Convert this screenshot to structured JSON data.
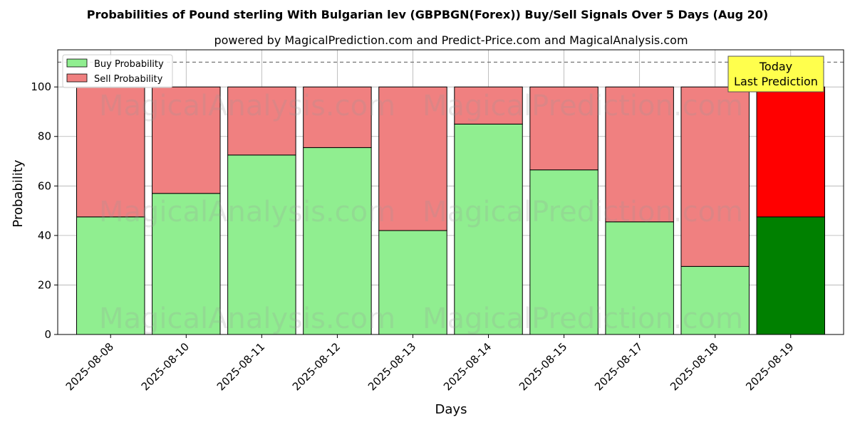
{
  "chart_data": {
    "type": "bar",
    "stacked": true,
    "title": "Probabilities of Pound sterling With Bulgarian lev (GBPBGN(Forex)) Buy/Sell Signals Over 5 Days (Aug 20)",
    "subtitle": "powered by MagicalPrediction.com and Predict-Price.com and MagicalAnalysis.com",
    "xlabel": "Days",
    "ylabel": "Probability",
    "ylim": [
      0,
      115
    ],
    "yticks": [
      0,
      20,
      40,
      60,
      80,
      100
    ],
    "grid": true,
    "legend_position": "top-left",
    "reference_line": 110,
    "categories": [
      "2025-08-08",
      "2025-08-10",
      "2025-08-11",
      "2025-08-12",
      "2025-08-13",
      "2025-08-14",
      "2025-08-15",
      "2025-08-17",
      "2025-08-18",
      "2025-08-19"
    ],
    "series": [
      {
        "name": "Buy Probability",
        "color": "#90ee90",
        "last_color": "#008000",
        "values": [
          47.5,
          57.0,
          72.5,
          75.5,
          42.0,
          85.0,
          66.5,
          45.5,
          27.5,
          47.5
        ]
      },
      {
        "name": "Sell Probability",
        "color": "#f08080",
        "last_color": "#ff0000",
        "values": [
          52.5,
          43.0,
          27.5,
          24.5,
          58.0,
          15.0,
          33.5,
          54.5,
          72.5,
          52.5
        ]
      }
    ],
    "annotation": {
      "line1": "Today",
      "line2": "Last Prediction",
      "background": "#ffff4d"
    },
    "watermarks": [
      "MagicalAnalysis.com",
      "MagicalPrediction.com"
    ]
  }
}
